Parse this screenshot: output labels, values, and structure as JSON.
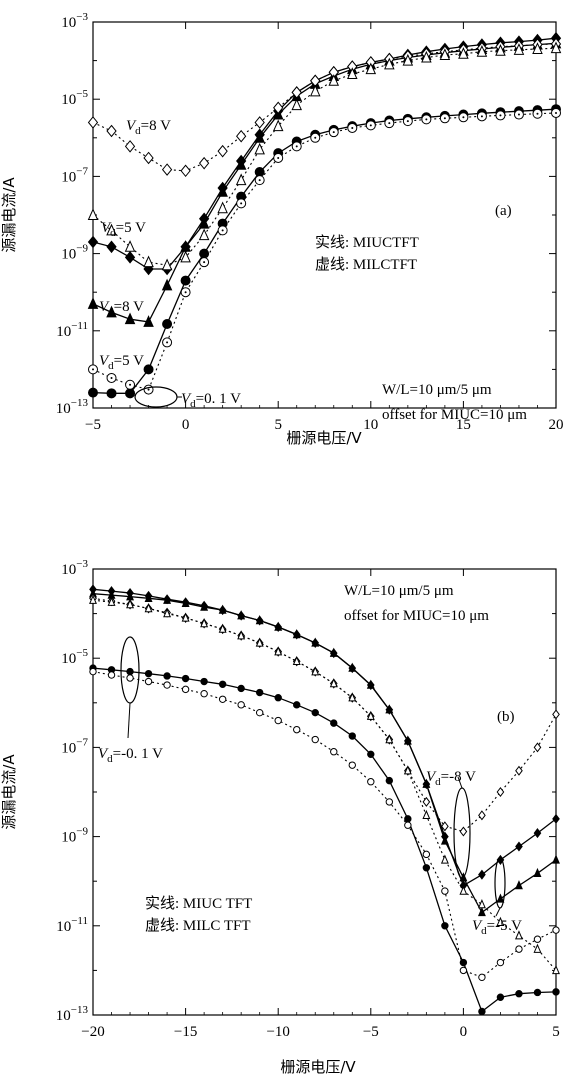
{
  "chart_data": [
    {
      "type": "line",
      "panel_label": "(a)",
      "xlabel": "栅源电压/V",
      "ylabel": "源漏电流/A",
      "xlim": [
        -5,
        20
      ],
      "ylim": [
        1e-13,
        0.001
      ],
      "yscale": "log",
      "x_ticks": [
        -5,
        0,
        5,
        10,
        15,
        20
      ],
      "y_ticks": [
        -13,
        -11,
        -9,
        -7,
        -5,
        -3
      ],
      "legend_lines": [
        "实线: MIUCTFT",
        "虚线: MILCTFT"
      ],
      "annotations": {
        "wl_main": "W/L=10 μm/5 μm",
        "offset": "offset for MIUC=10 μm",
        "vd_labels": [
          {
            "main": "V",
            "sub": "d",
            "rest": "=8 V"
          },
          {
            "main": "V",
            "sub": "d",
            "rest": "=5 V"
          },
          {
            "main": "V",
            "sub": "d",
            "rest": "=8 V"
          },
          {
            "main": "V",
            "sub": "d",
            "rest": "=5 V"
          },
          {
            "main": "V",
            "sub": "d",
            "rest": "=0. 1 V"
          }
        ]
      },
      "series": [
        {
          "style": "solid",
          "marker": "diamond-filled",
          "x": [
            -5,
            -4,
            -3,
            -2,
            -1,
            0,
            1,
            2,
            3,
            4,
            5,
            6,
            7,
            8,
            9,
            10,
            11,
            12,
            13,
            14,
            15,
            16,
            17,
            18,
            19,
            20
          ],
          "y": [
            2e-09,
            1.5e-09,
            8e-10,
            4e-10,
            4e-10,
            1.5e-09,
            8e-09,
            5e-08,
            2.5e-07,
            1.2e-06,
            5e-06,
            1.5e-05,
            3e-05,
            5e-05,
            7e-05,
            9e-05,
            0.00011,
            0.00014,
            0.00017,
            0.0002,
            0.00023,
            0.00026,
            0.00029,
            0.00031,
            0.00034,
            0.00038
          ]
        },
        {
          "style": "solid",
          "marker": "triangle-filled",
          "x": [
            -5,
            -4,
            -3,
            -2,
            -1,
            0,
            1,
            2,
            3,
            4,
            5,
            6,
            7,
            8,
            9,
            10,
            11,
            12,
            13,
            14,
            15,
            16,
            17,
            18,
            19,
            20
          ],
          "y": [
            5e-11,
            3e-11,
            2e-11,
            1.7e-11,
            1.5e-10,
            1.5e-09,
            6e-09,
            4e-08,
            2e-07,
            1e-06,
            4e-06,
            1.2e-05,
            2.5e-05,
            4e-05,
            6e-05,
            8e-05,
            0.0001,
            0.00012,
            0.00014,
            0.00016,
            0.00018,
            0.0002,
            0.00022,
            0.00024,
            0.00026,
            0.00028
          ]
        },
        {
          "style": "solid",
          "marker": "circle-filled",
          "x": [
            -5,
            -4,
            -3,
            -2,
            -1,
            0,
            1,
            2,
            3,
            4,
            5,
            6,
            7,
            8,
            9,
            10,
            11,
            12,
            13,
            14,
            15,
            16,
            17,
            18,
            19,
            20
          ],
          "y": [
            2.5e-13,
            2.4e-13,
            2.4e-13,
            1e-12,
            1.5e-11,
            2e-10,
            1e-09,
            6e-09,
            3e-08,
            1.3e-07,
            4e-07,
            8e-07,
            1.2e-06,
            1.6e-06,
            2e-06,
            2.4e-06,
            2.8e-06,
            3.1e-06,
            3.4e-06,
            3.7e-06,
            4e-06,
            4.3e-06,
            4.6e-06,
            4.9e-06,
            5.2e-06,
            5.5e-06
          ]
        },
        {
          "style": "dotted",
          "marker": "diamond-open",
          "x": [
            -5,
            -4,
            -3,
            -2,
            -1,
            0,
            1,
            2,
            3,
            4,
            5,
            6,
            7,
            8,
            9,
            10,
            11,
            12,
            13,
            14,
            15,
            16,
            17,
            18,
            19,
            20
          ],
          "y": [
            2.5e-06,
            1.5e-06,
            6e-07,
            3e-07,
            1.5e-07,
            1.4e-07,
            2.2e-07,
            4.5e-07,
            1.1e-06,
            2.5e-06,
            6e-06,
            1.5e-05,
            3e-05,
            5e-05,
            7e-05,
            9e-05,
            0.00011,
            0.00013,
            0.00015,
            0.00017,
            0.00019,
            0.00021,
            0.00023,
            0.00024,
            0.00026,
            0.00027
          ]
        },
        {
          "style": "dotted",
          "marker": "triangle-open",
          "x": [
            -5,
            -4,
            -3,
            -2,
            -1,
            0,
            1,
            2,
            3,
            4,
            5,
            6,
            7,
            8,
            9,
            10,
            11,
            12,
            13,
            14,
            15,
            16,
            17,
            18,
            19,
            20
          ],
          "y": [
            1e-08,
            4e-09,
            1.5e-09,
            6e-10,
            5e-10,
            8e-10,
            3e-09,
            1.5e-08,
            8e-08,
            5e-07,
            2e-06,
            7e-06,
            1.6e-05,
            3e-05,
            4.5e-05,
            6e-05,
            8e-05,
            0.0001,
            0.00012,
            0.00014,
            0.00015,
            0.00017,
            0.00018,
            0.00019,
            0.0002,
            0.00021
          ]
        },
        {
          "style": "dotted",
          "marker": "circle-open",
          "x": [
            -5,
            -4,
            -3,
            -2,
            -1,
            0,
            1,
            2,
            3,
            4,
            5,
            6,
            7,
            8,
            9,
            10,
            11,
            12,
            13,
            14,
            15,
            16,
            17,
            18,
            19,
            20
          ],
          "y": [
            1e-12,
            6e-13,
            4e-13,
            3e-13,
            5e-12,
            1e-10,
            6e-10,
            4e-09,
            2e-08,
            8e-08,
            3e-07,
            6e-07,
            1e-06,
            1.4e-06,
            1.8e-06,
            2.1e-06,
            2.4e-06,
            2.7e-06,
            3e-06,
            3.2e-06,
            3.4e-06,
            3.6e-06,
            3.8e-06,
            4e-06,
            4.2e-06,
            4.4e-06
          ]
        }
      ]
    },
    {
      "type": "line",
      "panel_label": "(b)",
      "xlabel": "栅源电压/V",
      "ylabel": "源漏电流/A",
      "xlim": [
        -20,
        5
      ],
      "ylim": [
        1e-13,
        0.001
      ],
      "yscale": "log",
      "x_ticks": [
        -20,
        -15,
        -10,
        -5,
        0,
        5
      ],
      "y_ticks": [
        -13,
        -11,
        -9,
        -7,
        -5,
        -3
      ],
      "legend_lines": [
        "实线: MIUC TFT",
        "虚线: MILC TFT"
      ],
      "annotations": {
        "wl_main": "W/L=10 μm/5 μm",
        "offset": "offset for MIUC=10 μm",
        "vd_labels": [
          {
            "main": "V",
            "sub": "d",
            "rest": "=-0. 1 V"
          },
          {
            "main": "V",
            "sub": "d",
            "rest": "=-8 V"
          },
          {
            "main": "V",
            "sub": "d",
            "rest": "=-5 V"
          }
        ]
      },
      "series": [
        {
          "style": "solid",
          "marker": "diamond-filled-small",
          "x": [
            -20,
            -19,
            -18,
            -17,
            -16,
            -15,
            -14,
            -13,
            -12,
            -11,
            -10,
            -9,
            -8,
            -7,
            -6,
            -5,
            -4,
            -3,
            -2,
            -1,
            0,
            1,
            2,
            3,
            4,
            5
          ],
          "y": [
            0.00035,
            0.00032,
            0.00029,
            0.00025,
            0.00021,
            0.00018,
            0.00015,
            0.00012,
            9e-05,
            7e-05,
            5e-05,
            3.4e-05,
            2.2e-05,
            1.3e-05,
            6e-06,
            2.5e-06,
            7e-07,
            1.4e-07,
            1.5e-08,
            1e-09,
            8e-11,
            1.4e-10,
            3e-10,
            6e-10,
            1.2e-09,
            2.5e-09
          ]
        },
        {
          "style": "solid",
          "marker": "triangle-filled-small",
          "x": [
            -20,
            -19,
            -18,
            -17,
            -16,
            -15,
            -14,
            -13,
            -12,
            -11,
            -10,
            -9,
            -8,
            -7,
            -6,
            -5,
            -4,
            -3,
            -2,
            -1,
            0,
            1,
            2,
            3,
            4,
            5
          ],
          "y": [
            0.00028,
            0.00026,
            0.00024,
            0.00022,
            0.0002,
            0.00017,
            0.00014,
            0.00012,
            9e-05,
            7e-05,
            5e-05,
            3.4e-05,
            2.2e-05,
            1.3e-05,
            6e-06,
            2.5e-06,
            7e-07,
            1.4e-07,
            1.5e-08,
            8e-10,
            1.2e-10,
            2e-11,
            4e-11,
            8e-11,
            1.5e-10,
            3e-10
          ]
        },
        {
          "style": "solid",
          "marker": "circle-filled-small",
          "x": [
            -20,
            -19,
            -18,
            -17,
            -16,
            -15,
            -14,
            -13,
            -12,
            -11,
            -10,
            -9,
            -8,
            -7,
            -6,
            -5,
            -4,
            -3,
            -2,
            -1,
            0,
            1,
            2,
            3,
            4,
            5
          ],
          "y": [
            6e-06,
            5.5e-06,
            5e-06,
            4.5e-06,
            4e-06,
            3.5e-06,
            3e-06,
            2.6e-06,
            2.1e-06,
            1.7e-06,
            1.3e-06,
            9e-07,
            6e-07,
            3.5e-07,
            1.8e-07,
            7e-08,
            1.8e-08,
            2.5e-09,
            2e-10,
            1e-11,
            1.5e-12,
            1.2e-13,
            2.5e-13,
            3e-13,
            3.2e-13,
            3.3e-13
          ]
        },
        {
          "style": "dotted",
          "marker": "diamond-dot",
          "x": [
            -20,
            -19,
            -18,
            -17,
            -16,
            -15,
            -14,
            -13,
            -12,
            -11,
            -10,
            -9,
            -8,
            -7,
            -6,
            -5,
            -4,
            -3,
            -2,
            -1,
            0,
            1,
            2,
            3,
            4,
            5
          ],
          "y": [
            0.00022,
            0.00019,
            0.00016,
            0.00013,
            0.000105,
            8e-05,
            6e-05,
            4.5e-05,
            3.2e-05,
            2.2e-05,
            1.4e-05,
            8.5e-06,
            5e-06,
            2.7e-06,
            1.3e-06,
            5e-07,
            1.5e-07,
            3e-08,
            6e-09,
            1.7e-09,
            1.3e-09,
            3e-09,
            1e-08,
            3e-08,
            1e-07,
            5.5e-07
          ]
        },
        {
          "style": "dotted",
          "marker": "triangle-dot",
          "x": [
            -20,
            -19,
            -18,
            -17,
            -16,
            -15,
            -14,
            -13,
            -12,
            -11,
            -10,
            -9,
            -8,
            -7,
            -6,
            -5,
            -4,
            -3,
            -2,
            -1,
            0,
            1,
            2,
            3,
            4,
            5
          ],
          "y": [
            0.0002,
            0.00018,
            0.00016,
            0.00013,
            0.0001,
            8e-05,
            6e-05,
            4.5e-05,
            3.2e-05,
            2.2e-05,
            1.4e-05,
            8.5e-06,
            5e-06,
            2.7e-06,
            1.3e-06,
            5e-07,
            1.5e-07,
            3e-08,
            3e-09,
            3e-10,
            6e-11,
            3e-11,
            1.2e-11,
            6e-12,
            3e-12,
            1e-12
          ]
        },
        {
          "style": "dotted",
          "marker": "circle-dot",
          "x": [
            -20,
            -19,
            -18,
            -17,
            -16,
            -15,
            -14,
            -13,
            -12,
            -11,
            -10,
            -9,
            -8,
            -7,
            -6,
            -5,
            -4,
            -3,
            -2,
            -1,
            0,
            1,
            2,
            3,
            4,
            5
          ],
          "y": [
            5e-06,
            4.2e-06,
            3.6e-06,
            3e-06,
            2.5e-06,
            2e-06,
            1.6e-06,
            1.2e-06,
            9e-07,
            6e-07,
            4e-07,
            2.5e-07,
            1.5e-07,
            8e-08,
            4e-08,
            1.7e-08,
            6e-09,
            1.8e-09,
            4e-10,
            6e-11,
            1e-12,
            7e-13,
            1.5e-12,
            3e-12,
            5e-12,
            8e-12
          ]
        }
      ]
    }
  ]
}
